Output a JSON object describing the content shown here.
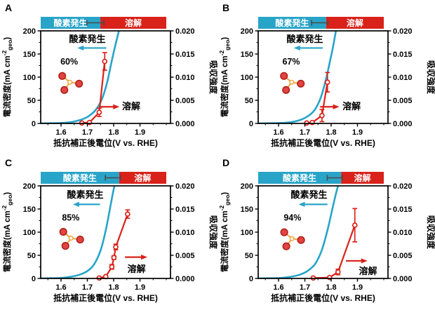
{
  "figure": {
    "colors": {
      "oer_blue": "#28A4C8",
      "dissolution_red": "#D9221A",
      "bar_marker_gray": "#4a4a4a",
      "axis_black": "#000000",
      "bar_text_white": "#ffffff",
      "molecule_atom_fill": "#E04443",
      "molecule_atom_ring": "#AF1D15",
      "molecule_bond_orange": "#EFA94A"
    },
    "bar_labels": {
      "oer": "酸素発生",
      "dissolution": "溶解"
    },
    "annotation_labels": {
      "oer": "酸素発生",
      "dissolution": "溶解"
    },
    "axis": {
      "x": {
        "title": "抵抗補正後電位(V vs. RHE)",
        "min": 1.52,
        "max": 2.02,
        "ticks": [
          1.6,
          1.7,
          1.8,
          1.9
        ],
        "tick_labels": [
          "1.6",
          "1.7",
          "1.8",
          "1.9"
        ],
        "minor_ticks": [
          1.55,
          1.65,
          1.75,
          1.85,
          1.95,
          2.0
        ]
      },
      "y_left": {
        "title_prefix": "電流密度(mA cm",
        "title_sup": "-2",
        "title_sub": "geo",
        "title_suffix": ")",
        "min": 0,
        "max": 200,
        "ticks": [
          0,
          50,
          100,
          150,
          200
        ],
        "tick_labels": [
          "0",
          "50",
          "100",
          "150",
          "200"
        ],
        "minor_ticks": [
          25,
          75,
          125,
          175
        ]
      },
      "y_right": {
        "title": "吸収強度",
        "min": 0,
        "max": 0.02,
        "ticks": [
          0,
          0.005,
          0.01,
          0.015,
          0.02
        ],
        "tick_labels": [
          "0.000",
          "0.005",
          "0.010",
          "0.015",
          "0.020"
        ],
        "minor_ticks": [
          0.0025,
          0.0075,
          0.0125,
          0.0175
        ]
      }
    },
    "panels": [
      {
        "label": "A"
      },
      {
        "label": "B"
      },
      {
        "label": "C"
      },
      {
        "label": "D"
      }
    ]
  },
  "chart_data": [
    {
      "type": "line",
      "panel": "A",
      "percent": "60%",
      "bar": {
        "blue_fraction": 0.475,
        "marker_center": 0.435,
        "marker_halfwidth": 0.068
      },
      "series": [
        {
          "name": "酸素発生 (OER current, mA cm-2geo)",
          "axis": "left",
          "points": [
            [
              1.52,
              0
            ],
            [
              1.56,
              0.5
            ],
            [
              1.6,
              1
            ],
            [
              1.64,
              3
            ],
            [
              1.67,
              7
            ],
            [
              1.7,
              14
            ],
            [
              1.73,
              28
            ],
            [
              1.755,
              52
            ],
            [
              1.775,
              88
            ],
            [
              1.79,
              128
            ],
            [
              1.806,
              168
            ],
            [
              1.82,
              200
            ]
          ]
        },
        {
          "name": "溶解 (dissolution, absorbance)",
          "axis": "right",
          "points": [
            [
              1.679,
              0.0001
            ],
            [
              1.708,
              0.0002
            ],
            [
              1.745,
              0.0024
            ],
            [
              1.766,
              0.0134
            ]
          ],
          "errors": [
            0.0002,
            0.0002,
            0.0009,
            0.0019
          ]
        }
      ],
      "annotations": {
        "oer_text": {
          "x": 1.7,
          "y": 176
        },
        "oer_arrow": {
          "tail": 1.772,
          "head": 1.662,
          "y": 163
        },
        "diss_text": {
          "x": 1.832,
          "y": 30,
          "anchor": "start"
        },
        "diss_arrow": {
          "tail": 1.75,
          "head": 1.822,
          "y": 36
        },
        "percent_pos": {
          "x": 1.631,
          "y": 127
        },
        "molecule_pos": {
          "x": 1.634,
          "y": 89
        }
      }
    },
    {
      "type": "line",
      "panel": "B",
      "percent": "67%",
      "bar": {
        "blue_fraction": 0.54,
        "marker_center": 0.49,
        "marker_halfwidth": 0.065
      },
      "series": [
        {
          "name": "酸素発生 (OER current, mA cm-2geo)",
          "axis": "left",
          "points": [
            [
              1.52,
              0
            ],
            [
              1.565,
              0.5
            ],
            [
              1.61,
              1
            ],
            [
              1.65,
              3
            ],
            [
              1.68,
              7
            ],
            [
              1.71,
              15
            ],
            [
              1.737,
              29
            ],
            [
              1.76,
              55
            ],
            [
              1.78,
              95
            ],
            [
              1.795,
              133
            ],
            [
              1.808,
              168
            ],
            [
              1.818,
              200
            ]
          ]
        },
        {
          "name": "溶解 (dissolution, absorbance)",
          "axis": "right",
          "points": [
            [
              1.707,
              0.0001
            ],
            [
              1.728,
              0.0002
            ],
            [
              1.765,
              0.0017
            ],
            [
              1.786,
              0.0089
            ]
          ],
          "errors": [
            0.0002,
            0.0002,
            0.0013,
            0.0021
          ]
        }
      ],
      "annotations": {
        "oer_text": {
          "x": 1.7,
          "y": 176
        },
        "oer_arrow": {
          "tail": 1.768,
          "head": 1.658,
          "y": 163
        },
        "diss_text": {
          "x": 1.843,
          "y": 30,
          "anchor": "start"
        },
        "diss_arrow": {
          "tail": 1.758,
          "head": 1.831,
          "y": 36
        },
        "percent_pos": {
          "x": 1.648,
          "y": 127
        },
        "molecule_pos": {
          "x": 1.65,
          "y": 89
        }
      }
    },
    {
      "type": "line",
      "panel": "C",
      "percent": "85%",
      "bar": {
        "blue_fraction": 0.625,
        "marker_center": 0.575,
        "marker_halfwidth": 0.06
      },
      "series": [
        {
          "name": "酸素発生 (OER current, mA cm-2geo)",
          "axis": "left",
          "points": [
            [
              1.52,
              0
            ],
            [
              1.555,
              0.5
            ],
            [
              1.6,
              1
            ],
            [
              1.64,
              4
            ],
            [
              1.67,
              8
            ],
            [
              1.7,
              16
            ],
            [
              1.725,
              30
            ],
            [
              1.75,
              60
            ],
            [
              1.77,
              104
            ],
            [
              1.785,
              148
            ],
            [
              1.795,
              178
            ],
            [
              1.803,
              200
            ]
          ]
        },
        {
          "name": "溶解 (dissolution, absorbance)",
          "axis": "right",
          "points": [
            [
              1.745,
              0.0001
            ],
            [
              1.77,
              0.0004
            ],
            [
              1.793,
              0.0025
            ],
            [
              1.801,
              0.0045
            ],
            [
              1.808,
              0.0068
            ],
            [
              1.853,
              0.0139
            ]
          ],
          "errors": [
            0.0002,
            0.0002,
            0.0005,
            0.0004,
            0.0006,
            0.0009
          ]
        }
      ],
      "annotations": {
        "oer_text": {
          "x": 1.692,
          "y": 174
        },
        "oer_arrow": {
          "tail": 1.748,
          "head": 1.645,
          "y": 160
        },
        "diss_text": {
          "x": 1.887,
          "y": 14,
          "anchor": "middle"
        },
        "diss_arrow": {
          "tail": 1.843,
          "head": 1.928,
          "y": 46
        },
        "percent_pos": {
          "x": 1.637,
          "y": 125
        },
        "molecule_pos": {
          "x": 1.638,
          "y": 87
        }
      }
    },
    {
      "type": "line",
      "panel": "D",
      "percent": "94%",
      "bar": {
        "blue_fraction": 0.66,
        "marker_center": 0.61,
        "marker_halfwidth": 0.06
      },
      "series": [
        {
          "name": "酸素発生 (OER current, mA cm-2geo)",
          "axis": "left",
          "points": [
            [
              1.52,
              0
            ],
            [
              1.565,
              0.5
            ],
            [
              1.61,
              1
            ],
            [
              1.65,
              4
            ],
            [
              1.68,
              8
            ],
            [
              1.71,
              16
            ],
            [
              1.74,
              32
            ],
            [
              1.765,
              62
            ],
            [
              1.786,
              104
            ],
            [
              1.802,
              144
            ],
            [
              1.816,
              178
            ],
            [
              1.826,
              200
            ]
          ]
        },
        {
          "name": "溶解 (dissolution, absorbance)",
          "axis": "right",
          "points": [
            [
              1.732,
              0.0001
            ],
            [
              1.794,
              0.0002
            ],
            [
              1.826,
              0.0014
            ],
            [
              1.89,
              0.0115
            ]
          ],
          "errors": [
            0.0002,
            0.0002,
            0.0006,
            0.0036
          ]
        }
      ],
      "annotations": {
        "oer_text": {
          "x": 1.716,
          "y": 174
        },
        "oer_arrow": {
          "tail": 1.786,
          "head": 1.676,
          "y": 160
        },
        "diss_text": {
          "x": 1.94,
          "y": 9,
          "anchor": "middle"
        },
        "diss_arrow": {
          "tail": 1.856,
          "head": 1.938,
          "y": 38
        },
        "percent_pos": {
          "x": 1.653,
          "y": 125
        },
        "molecule_pos": {
          "x": 1.651,
          "y": 86
        }
      }
    }
  ]
}
